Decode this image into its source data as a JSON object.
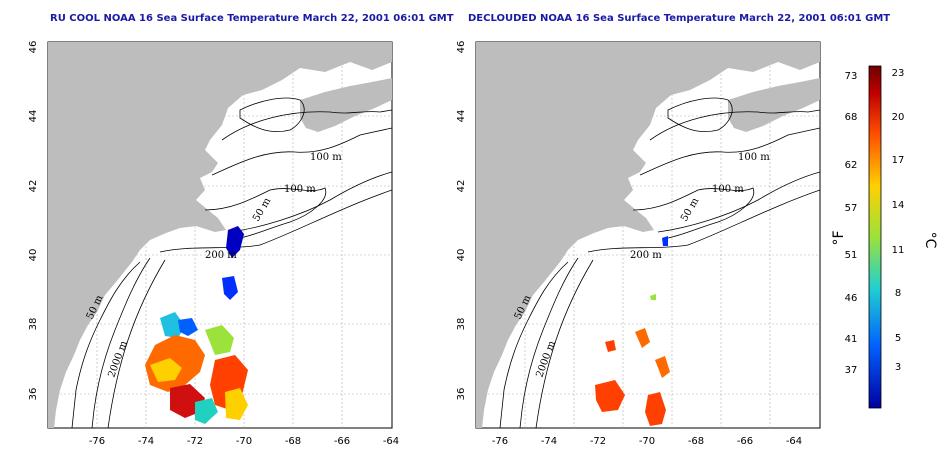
{
  "left_map": {
    "title": "RU COOL NOAA 16 Sea Surface Temperature March 22, 2001 06:01 GMT",
    "x_ticks": [
      "-76",
      "-74",
      "-72",
      "-70",
      "-68",
      "-66",
      "-64"
    ],
    "y_ticks": [
      "46",
      "44",
      "42",
      "40",
      "38",
      "36"
    ],
    "contours": [
      "100 m",
      "100 m",
      "50 m",
      "200 m",
      "50 m",
      "2000 m"
    ]
  },
  "right_map": {
    "title": "DECLOUDED NOAA 16 Sea Surface Temperature March 22, 2001 06:01 GMT",
    "x_ticks": [
      "-76",
      "-74",
      "-72",
      "-70",
      "-68",
      "-66",
      "-64"
    ],
    "y_ticks": [
      "46",
      "44",
      "42",
      "40",
      "38",
      "36"
    ],
    "contours": [
      "100 m",
      "100 m",
      "50 m",
      "200 m",
      "50 m",
      "2000 m"
    ]
  },
  "colorbar": {
    "fahrenheit_unit": "°F",
    "celsius_unit": "°C",
    "fahrenheit_ticks": [
      "73",
      "68",
      "62",
      "57",
      "51",
      "46",
      "41",
      "37"
    ],
    "celsius_ticks": [
      "23",
      "20",
      "17",
      "14",
      "11",
      "8",
      "5",
      "3"
    ],
    "colors": [
      "#7a0000",
      "#d01010",
      "#ff6a00",
      "#ffd000",
      "#9be23a",
      "#20d0c0",
      "#0070ff",
      "#0000a0"
    ]
  },
  "colors": {
    "land": "#bdbdbd",
    "ocean": "#ffffff",
    "title": "#1a1aa6"
  }
}
